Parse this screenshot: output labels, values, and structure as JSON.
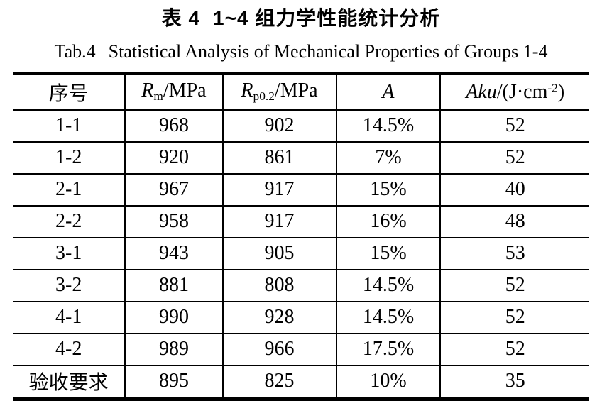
{
  "page": {
    "title_cn": {
      "label": "表 4",
      "text": "1~4 组力学性能统计分析"
    },
    "title_en": {
      "label": "Tab.4",
      "text": "Statistical Analysis of Mechanical Properties of Groups 1-4"
    }
  },
  "table": {
    "columns": [
      {
        "name": "sequence-number",
        "segments": [
          {
            "t": "序号",
            "s": "n"
          }
        ]
      },
      {
        "name": "rm-mpa",
        "segments": [
          {
            "t": "R",
            "s": "i"
          },
          {
            "t": "m",
            "s": "sub"
          },
          {
            "t": "/MPa",
            "s": "n"
          }
        ]
      },
      {
        "name": "rp02-mpa",
        "segments": [
          {
            "t": "R",
            "s": "i"
          },
          {
            "t": "p0.2",
            "s": "sub"
          },
          {
            "t": "/MPa",
            "s": "n"
          }
        ]
      },
      {
        "name": "elongation-a",
        "segments": [
          {
            "t": "A",
            "s": "i"
          }
        ]
      },
      {
        "name": "aku-impact",
        "segments": [
          {
            "t": "Aku",
            "s": "i"
          },
          {
            "t": "/(J·cm",
            "s": "n"
          },
          {
            "t": "-2",
            "s": "sup"
          },
          {
            "t": ")",
            "s": "n"
          }
        ]
      }
    ],
    "col_widths_pct": [
      19.5,
      16.9,
      19.7,
      18.1,
      25.8
    ],
    "rows": [
      [
        "1-1",
        "968",
        "902",
        "14.5%",
        "52"
      ],
      [
        "1-2",
        "920",
        "861",
        "7%",
        "52"
      ],
      [
        "2-1",
        "967",
        "917",
        "15%",
        "40"
      ],
      [
        "2-2",
        "958",
        "917",
        "16%",
        "48"
      ],
      [
        "3-1",
        "943",
        "905",
        "15%",
        "53"
      ],
      [
        "3-2",
        "881",
        "808",
        "14.5%",
        "52"
      ],
      [
        "4-1",
        "990",
        "928",
        "14.5%",
        "52"
      ],
      [
        "4-2",
        "989",
        "966",
        "17.5%",
        "52"
      ],
      [
        "验收要求",
        "895",
        "825",
        "10%",
        "35"
      ]
    ]
  },
  "colors": {
    "text": "#000000",
    "background": "#ffffff",
    "border": "#000000"
  }
}
